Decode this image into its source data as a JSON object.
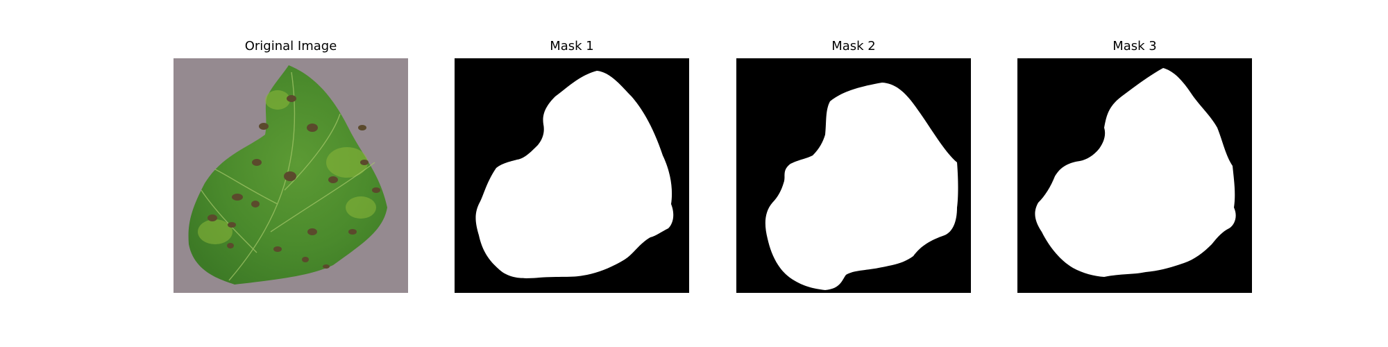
{
  "figure": {
    "panels": [
      {
        "title": "Original Image"
      },
      {
        "title": "Mask 1"
      },
      {
        "title": "Mask 2"
      },
      {
        "title": "Mask 3"
      }
    ]
  },
  "colors": {
    "background": "#ffffff",
    "mask_foreground": "#ffffff",
    "mask_background": "#000000",
    "photo_backdrop": "#958a90",
    "leaf_green": "#4f8f2e",
    "leaf_light_green": "#8cb83a",
    "lesion_brown": "#5b4a2c"
  }
}
